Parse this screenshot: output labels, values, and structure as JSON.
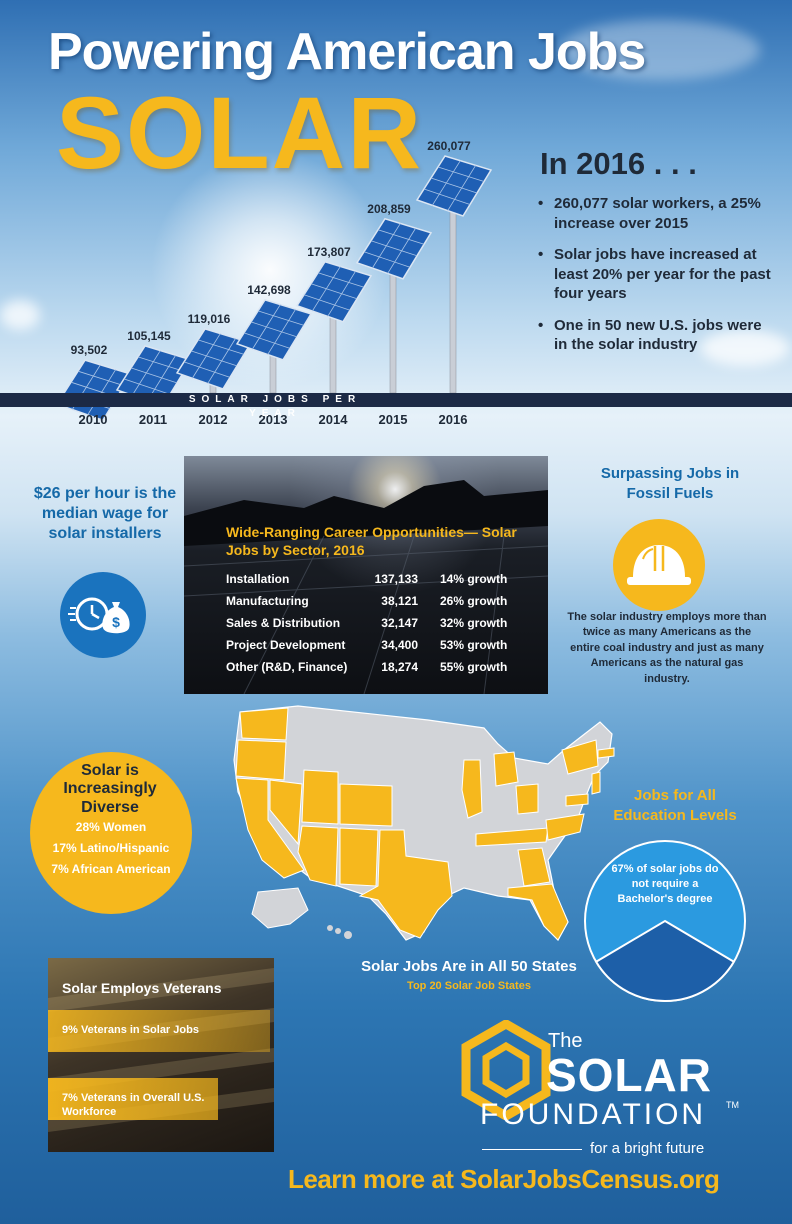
{
  "header": {
    "title_line1": "Powering American Jobs",
    "title_line2": "SOLAR"
  },
  "year_stats": {
    "heading": "In 2016 . . .",
    "bullets": [
      "260,077 solar workers, a 25% increase over 2015",
      "Solar jobs have increased at least 20% per year for the past four years",
      "One in 50 new U.S. jobs were in the solar industry"
    ]
  },
  "chart_data": {
    "type": "bar",
    "title": "",
    "xlabel": "SOLAR JOBS PER YEAR",
    "ylabel": "",
    "categories": [
      "2010",
      "2011",
      "2012",
      "2013",
      "2014",
      "2015",
      "2016"
    ],
    "values": [
      93502,
      105145,
      119016,
      142698,
      173807,
      208859,
      260077
    ],
    "value_labels": [
      "93,502",
      "105,145",
      "119,016",
      "142,698",
      "173,807",
      "208,859",
      "260,077"
    ],
    "ylim": [
      0,
      260077
    ],
    "grid": false,
    "legend": "none",
    "mark_style": "solar panels on poles"
  },
  "wage": {
    "text": "$26 per hour is the median wage for solar installers",
    "icon": "clock-money-bag-icon"
  },
  "sectors": {
    "title": "Wide-Ranging Career Opportunities— Solar Jobs by Sector, 2016",
    "rows": [
      {
        "sector": "Installation",
        "jobs": "137,133",
        "growth": "14% growth"
      },
      {
        "sector": "Manufacturing",
        "jobs": "38,121",
        "growth": "26% growth"
      },
      {
        "sector": "Sales & Distribution",
        "jobs": "32,147",
        "growth": "32% growth"
      },
      {
        "sector": "Project Development",
        "jobs": "34,400",
        "growth": "53% growth"
      },
      {
        "sector": "Other (R&D, Finance)",
        "jobs": "18,274",
        "growth": "55% growth"
      }
    ]
  },
  "fossil": {
    "title": "Surpassing Jobs in Fossil Fuels",
    "text": "The solar industry employs more than twice as many Americans as the entire coal industry and just as many Americans as the natural gas industry.",
    "icon": "hard-hat-icon"
  },
  "diversity": {
    "title": "Solar is Increasingly Diverse",
    "stats": [
      "28% Women",
      "17% Latino/Hispanic",
      "7% African American"
    ]
  },
  "map": {
    "title": "Solar Jobs Are in All 50 States",
    "subtitle": "Top 20 Solar Job States"
  },
  "education": {
    "title": "Jobs for All Education Levels",
    "text": "67% of solar jobs do not require a Bachelor's degree",
    "share": 0.67
  },
  "veterans": {
    "title": "Solar Employs Veterans",
    "items": [
      {
        "text": "9% Veterans in Solar Jobs",
        "value": 9
      },
      {
        "text": "7% Veterans in Overall U.S. Workforce",
        "value": 7
      }
    ]
  },
  "logo": {
    "the": "The",
    "solar": "SOLAR",
    "foundation": "FOUNDATION",
    "tm": "TM",
    "tagline": "for a bright future"
  },
  "footer": {
    "learn_more": "Learn more at SolarJobsCensus.org"
  },
  "colors": {
    "accent_yellow": "#f6b81d",
    "dark_text": "#1f2a38",
    "blue": "#1569a8",
    "panel_blue": "#1f5fb4",
    "strip": "#1c2a46"
  }
}
